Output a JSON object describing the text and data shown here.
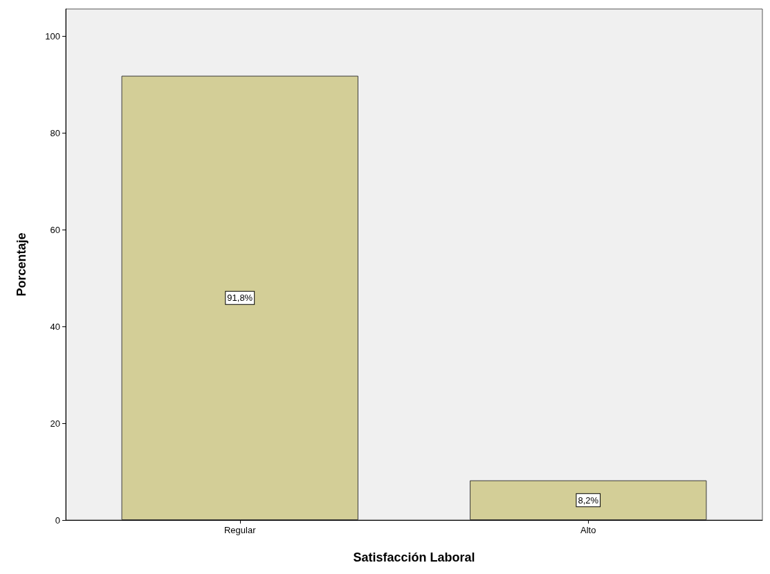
{
  "chart_data": {
    "type": "bar",
    "xlabel": "Satisfacción Laboral",
    "ylabel": "Porcentaje",
    "categories": [
      "Regular",
      "Alto"
    ],
    "values": [
      91.8,
      8.2
    ],
    "value_labels": [
      "91,8%",
      "8,2%"
    ],
    "color": "#d3ce97",
    "ylim": [
      0,
      105.6
    ],
    "yticks": [
      0,
      20,
      40,
      60,
      80,
      100
    ],
    "grid": false
  }
}
